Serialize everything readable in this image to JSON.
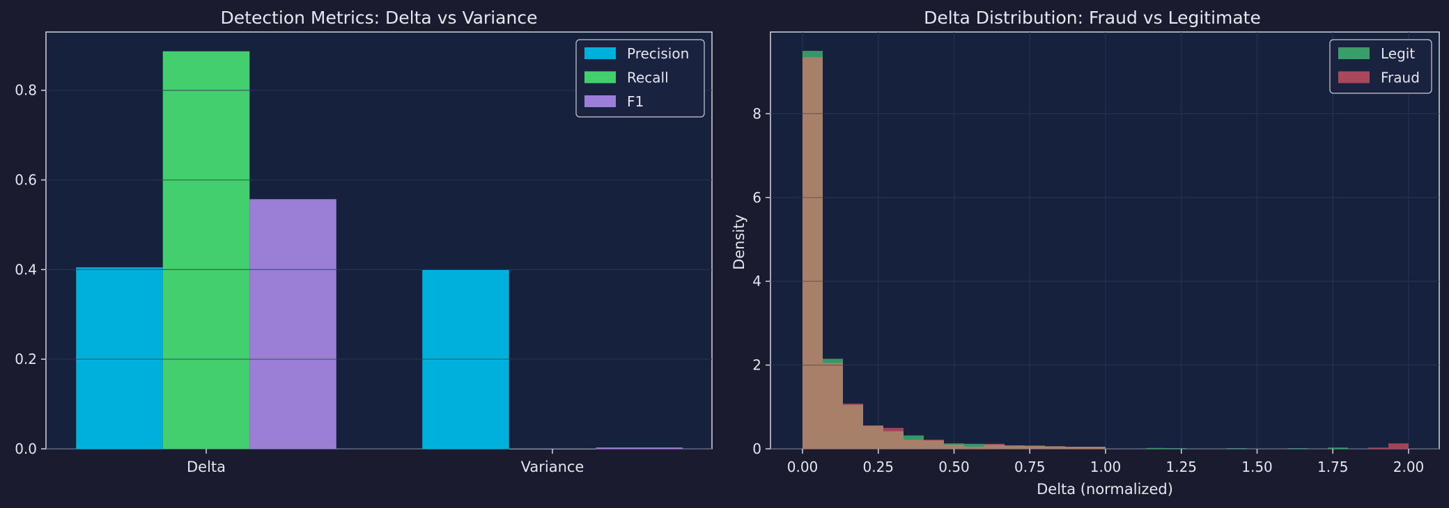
{
  "chart_data": [
    {
      "type": "bar",
      "title": "Detection Metrics: Delta vs Variance",
      "xlabel": "",
      "ylabel": "",
      "categories": [
        "Delta",
        "Variance"
      ],
      "series": [
        {
          "name": "Precision",
          "values": [
            0.405,
            0.399
          ],
          "color": "#00b0dc"
        },
        {
          "name": "Recall",
          "values": [
            0.887,
            0.0
          ],
          "color": "#43cf6e"
        },
        {
          "name": "F1",
          "values": [
            0.557,
            0.003
          ],
          "color": "#9b7fd6"
        }
      ],
      "ylim": [
        0,
        0.93
      ],
      "yticks": [
        "0.0",
        "0.2",
        "0.4",
        "0.6",
        "0.8"
      ],
      "legend": "top-right",
      "grid": true
    },
    {
      "type": "histogram",
      "title": "Delta Distribution: Fraud vs Legitimate",
      "xlabel": "Delta (normalized)",
      "ylabel": "Density",
      "bin_start": 0.0,
      "bin_width": 0.0667,
      "series": [
        {
          "name": "Legit",
          "color": "#3a9e6a",
          "values": [
            9.5,
            2.15,
            1.05,
            0.55,
            0.42,
            0.32,
            0.2,
            0.13,
            0.12,
            0.1,
            0.08,
            0.07,
            0.06,
            0.05,
            0.05,
            0.0,
            0.0,
            0.02,
            0.01,
            0.0,
            0.0,
            0.01,
            0.0,
            0.0,
            0.01,
            0.0,
            0.03,
            0.0,
            0.0,
            0.0
          ]
        },
        {
          "name": "Fraud",
          "color": "#a8485a",
          "values": [
            9.35,
            2.05,
            1.08,
            0.56,
            0.5,
            0.22,
            0.22,
            0.1,
            0.05,
            0.12,
            0.08,
            0.08,
            0.06,
            0.05,
            0.05,
            0.0,
            0.0,
            0.0,
            0.0,
            0.0,
            0.0,
            0.0,
            0.0,
            0.0,
            0.0,
            0.0,
            0.0,
            0.0,
            0.03,
            0.13
          ]
        }
      ],
      "xlim": [
        -0.1,
        2.1
      ],
      "ylim": [
        0,
        9.95
      ],
      "xticks": [
        "0.00",
        "0.25",
        "0.50",
        "0.75",
        "1.00",
        "1.25",
        "1.50",
        "1.75",
        "2.00"
      ],
      "yticks": [
        "0",
        "2",
        "4",
        "6",
        "8"
      ],
      "legend": "top-right",
      "grid": true
    }
  ]
}
